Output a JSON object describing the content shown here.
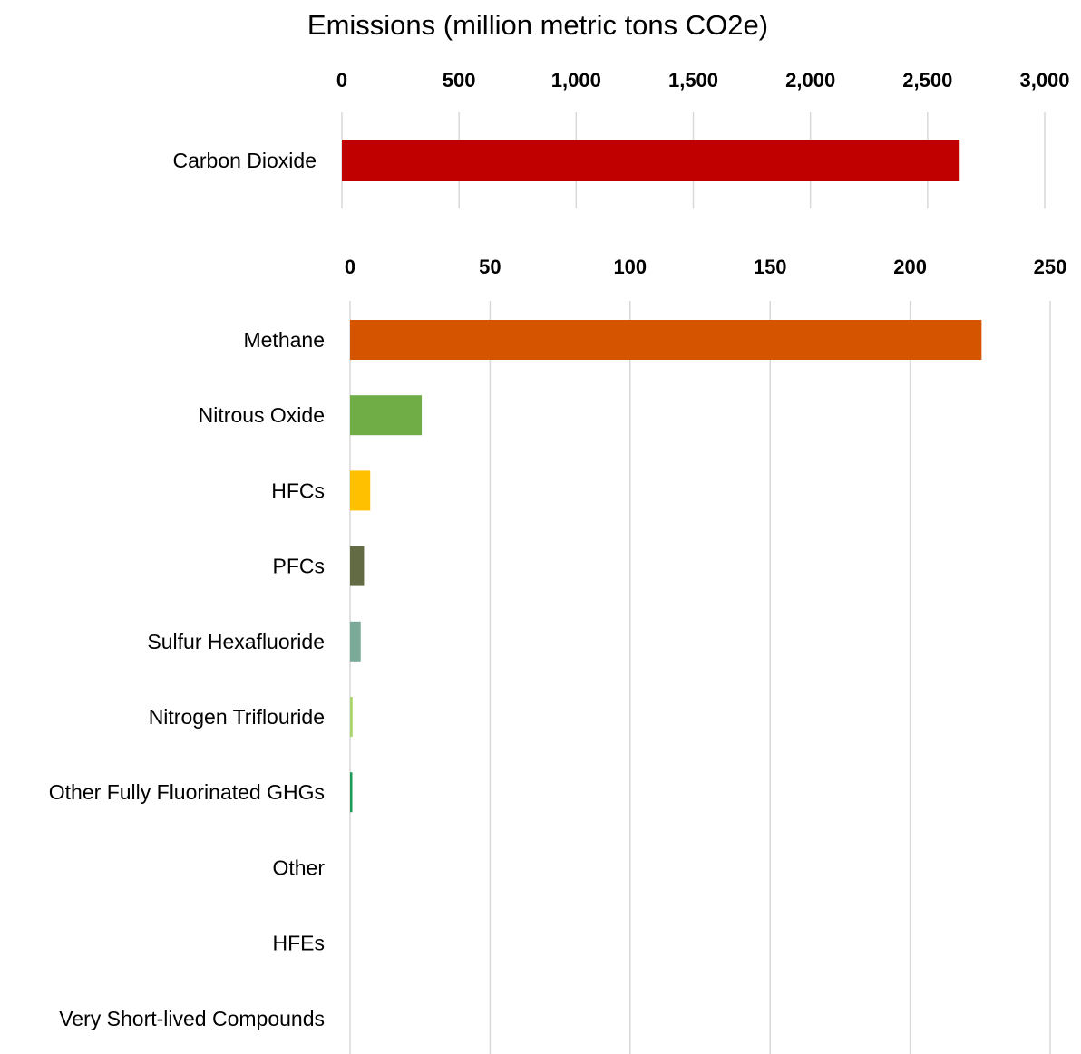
{
  "chart_data": {
    "title": "Emissions (million metric tons CO2e)",
    "type": "bar",
    "orientation": "horizontal",
    "grid": true,
    "panels": [
      {
        "categories": [
          "Carbon Dioxide"
        ],
        "values": [
          2637
        ],
        "colors": [
          "#c00000"
        ],
        "xlim": [
          0,
          3000
        ],
        "ticks": [
          0,
          500,
          1000,
          1500,
          2000,
          2500,
          3000
        ],
        "tick_labels": [
          "0",
          "500",
          "1,000",
          "1,500",
          "2,000",
          "2,500",
          "3,000"
        ]
      },
      {
        "categories": [
          "Methane",
          "Nitrous Oxide",
          "HFCs",
          "PFCs",
          "Sulfur Hexafluoride",
          "Nitrogen Triflouride",
          "Other Fully Fluorinated GHGs",
          "Other",
          "HFEs",
          "Very Short-lived Compounds"
        ],
        "values": [
          225.5,
          25.6,
          7.2,
          5.0,
          3.8,
          0.9,
          0.8,
          0,
          0,
          0
        ],
        "colors": [
          "#d55400",
          "#70ad47",
          "#ffc000",
          "#636b44",
          "#7bab98",
          "#a9d46b",
          "#1e9b5a",
          "#999999",
          "#999999",
          "#999999"
        ],
        "xlim": [
          0,
          250
        ],
        "ticks": [
          0,
          50,
          100,
          150,
          200,
          250
        ],
        "tick_labels": [
          "0",
          "50",
          "100",
          "150",
          "200",
          "250"
        ]
      }
    ]
  }
}
